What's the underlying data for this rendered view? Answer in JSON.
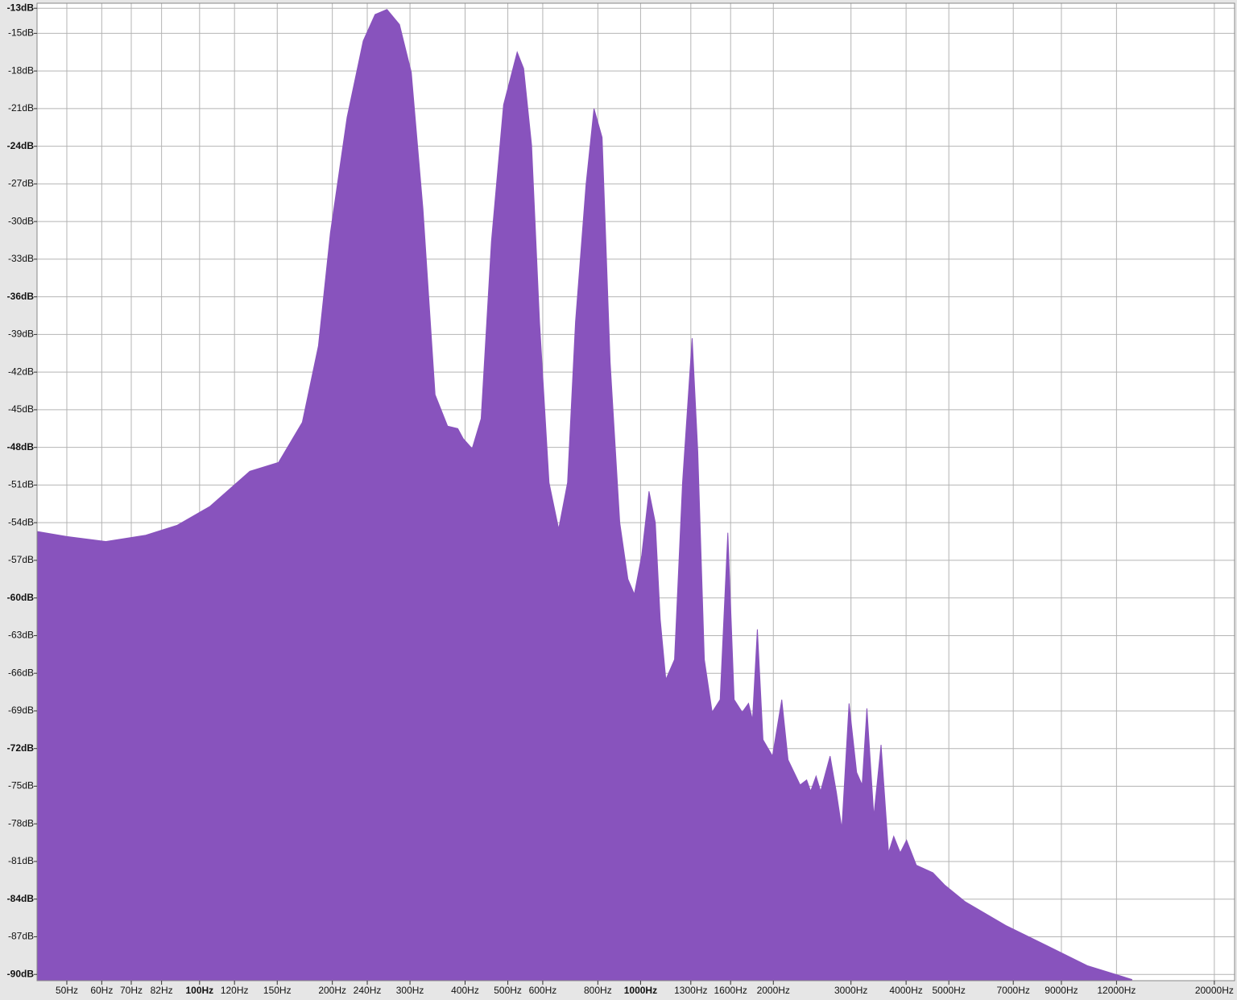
{
  "chart_data": {
    "type": "area",
    "xscale": "log",
    "color": "#8853bd",
    "grid": true,
    "xlim": [
      42.8,
      22230
    ],
    "ylim": [
      -90.5,
      -12.6
    ],
    "xticks": [
      {
        "value": 50,
        "label": "50Hz"
      },
      {
        "value": 60,
        "label": "60Hz"
      },
      {
        "value": 70,
        "label": "70Hz"
      },
      {
        "value": 82,
        "label": "82Hz"
      },
      {
        "value": 100,
        "label": "100Hz"
      },
      {
        "value": 120,
        "label": "120Hz"
      },
      {
        "value": 150,
        "label": "150Hz"
      },
      {
        "value": 200,
        "label": "200Hz"
      },
      {
        "value": 240,
        "label": "240Hz"
      },
      {
        "value": 300,
        "label": "300Hz"
      },
      {
        "value": 400,
        "label": "400Hz"
      },
      {
        "value": 500,
        "label": "500Hz"
      },
      {
        "value": 600,
        "label": "600Hz"
      },
      {
        "value": 800,
        "label": "800Hz"
      },
      {
        "value": 1000,
        "label": "1000Hz"
      },
      {
        "value": 1300,
        "label": "1300Hz"
      },
      {
        "value": 1600,
        "label": "1600Hz"
      },
      {
        "value": 2000,
        "label": "2000Hz"
      },
      {
        "value": 3000,
        "label": "3000Hz"
      },
      {
        "value": 4000,
        "label": "4000Hz"
      },
      {
        "value": 5000,
        "label": "5000Hz"
      },
      {
        "value": 7000,
        "label": "7000Hz"
      },
      {
        "value": 9000,
        "label": "9000Hz"
      },
      {
        "value": 12000,
        "label": "12000Hz"
      },
      {
        "value": 20000,
        "label": "20000Hz"
      }
    ],
    "yticks": [
      {
        "value": -13,
        "label": "-13dB"
      },
      {
        "value": -15,
        "label": "-15dB"
      },
      {
        "value": -18,
        "label": "-18dB"
      },
      {
        "value": -21,
        "label": "-21dB"
      },
      {
        "value": -24,
        "label": "-24dB"
      },
      {
        "value": -27,
        "label": "-27dB"
      },
      {
        "value": -30,
        "label": "-30dB"
      },
      {
        "value": -33,
        "label": "-33dB"
      },
      {
        "value": -36,
        "label": "-36dB"
      },
      {
        "value": -39,
        "label": "-39dB"
      },
      {
        "value": -42,
        "label": "-42dB"
      },
      {
        "value": -45,
        "label": "-45dB"
      },
      {
        "value": -48,
        "label": "-48dB"
      },
      {
        "value": -51,
        "label": "-51dB"
      },
      {
        "value": -54,
        "label": "-54dB"
      },
      {
        "value": -57,
        "label": "-57dB"
      },
      {
        "value": -60,
        "label": "-60dB"
      },
      {
        "value": -63,
        "label": "-63dB"
      },
      {
        "value": -66,
        "label": "-66dB"
      },
      {
        "value": -69,
        "label": "-69dB"
      },
      {
        "value": -72,
        "label": "-72dB"
      },
      {
        "value": -75,
        "label": "-75dB"
      },
      {
        "value": -78,
        "label": "-78dB"
      },
      {
        "value": -81,
        "label": "-81dB"
      },
      {
        "value": -84,
        "label": "-84dB"
      },
      {
        "value": -87,
        "label": "-87dB"
      },
      {
        "value": -90,
        "label": "-90dB"
      }
    ],
    "x": [
      42.8,
      50,
      61.2,
      75.5,
      89,
      105.6,
      130,
      151,
      171,
      186,
      198,
      216,
      235,
      250,
      266,
      284,
      302,
      321,
      342,
      365,
      385,
      396,
      415,
      435,
      459,
      489,
      525,
      543,
      566,
      590,
      620,
      652,
      683,
      712,
      752,
      784,
      818,
      853,
      897,
      936,
      968,
      1006,
      1045,
      1080,
      1108,
      1141,
      1194,
      1245,
      1309,
      1348,
      1395,
      1453,
      1515,
      1577,
      1630,
      1700,
      1757,
      1794,
      1840,
      1895,
      1991,
      2090,
      2160,
      2300,
      2380,
      2430,
      2500,
      2560,
      2690,
      2780,
      2860,
      2970,
      3090,
      3180,
      3260,
      3380,
      3510,
      3650,
      3750,
      3880,
      4010,
      4220,
      4600,
      4900,
      5440,
      6730,
      8330,
      10300,
      13000
    ],
    "values": [
      -54.7,
      -55.1,
      -55.5,
      -55.0,
      -54.2,
      -52.7,
      -49.9,
      -49.2,
      -46.0,
      -39.9,
      -30.9,
      -21.7,
      -15.6,
      -13.5,
      -13.1,
      -14.3,
      -18.1,
      -29.0,
      -43.8,
      -46.3,
      -46.5,
      -47.3,
      -48.1,
      -45.7,
      -31.6,
      -20.7,
      -16.5,
      -17.8,
      -23.9,
      -38.0,
      -50.8,
      -54.5,
      -50.8,
      -38.0,
      -27.1,
      -21.0,
      -23.3,
      -41.2,
      -54.0,
      -58.5,
      -59.7,
      -56.6,
      -51.5,
      -54.0,
      -61.7,
      -66.5,
      -64.9,
      -50.8,
      -39.3,
      -48.3,
      -64.9,
      -69.1,
      -68.1,
      -54.8,
      -68.1,
      -69.1,
      -68.4,
      -69.7,
      -62.5,
      -71.3,
      -72.6,
      -68.1,
      -72.9,
      -74.9,
      -74.5,
      -75.4,
      -74.2,
      -75.4,
      -72.6,
      -75.5,
      -78.4,
      -68.4,
      -73.9,
      -74.9,
      -68.8,
      -77.4,
      -71.7,
      -80.3,
      -79.0,
      -80.3,
      -79.3,
      -81.3,
      -81.9,
      -82.9,
      -84.2,
      -86.1,
      -87.7,
      -89.3,
      -90.4
    ]
  }
}
